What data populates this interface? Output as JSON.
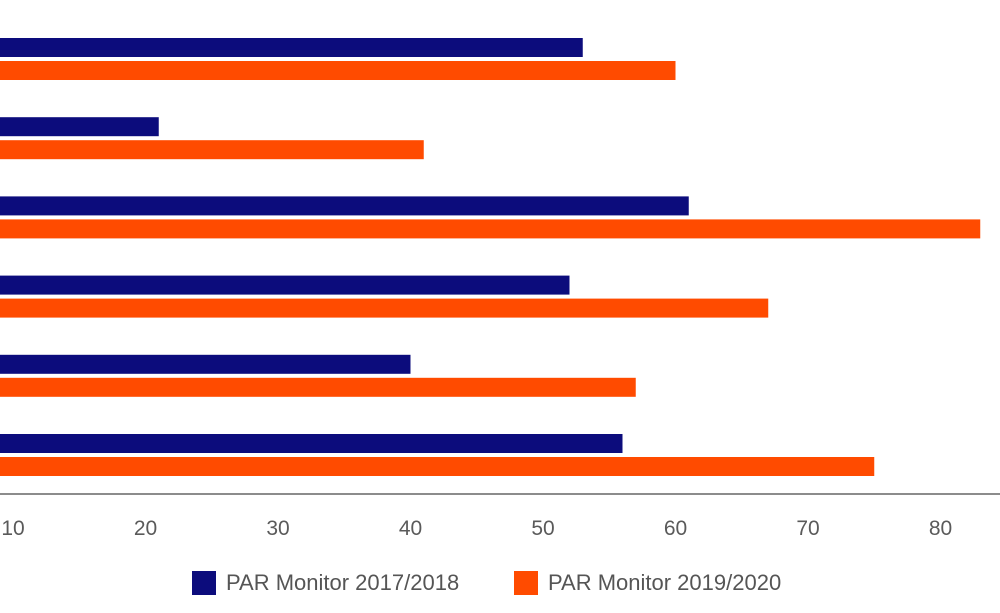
{
  "chart_data": {
    "type": "bar",
    "orientation": "horizontal",
    "categories": [
      "",
      "",
      "",
      "",
      "",
      ""
    ],
    "series": [
      {
        "name": "PAR Monitor 2017/2018",
        "color": "#0c0c7c",
        "values": [
          53,
          21,
          61,
          52,
          40,
          56
        ]
      },
      {
        "name": "PAR Monitor 2019/2020",
        "color": "#ff4b00",
        "values": [
          60,
          41,
          83,
          67,
          57,
          75
        ]
      }
    ],
    "x_ticks": [
      "10",
      "20",
      "30",
      "40",
      "50",
      "60",
      "70",
      "80"
    ],
    "xlim": [
      10,
      85
    ],
    "grid": false,
    "legend": "bottom-center"
  },
  "legend_items": [
    {
      "label": "PAR Monitor 2017/2018",
      "color": "#0c0c7c"
    },
    {
      "label": "PAR Monitor 2019/2020",
      "color": "#ff4b00"
    }
  ]
}
